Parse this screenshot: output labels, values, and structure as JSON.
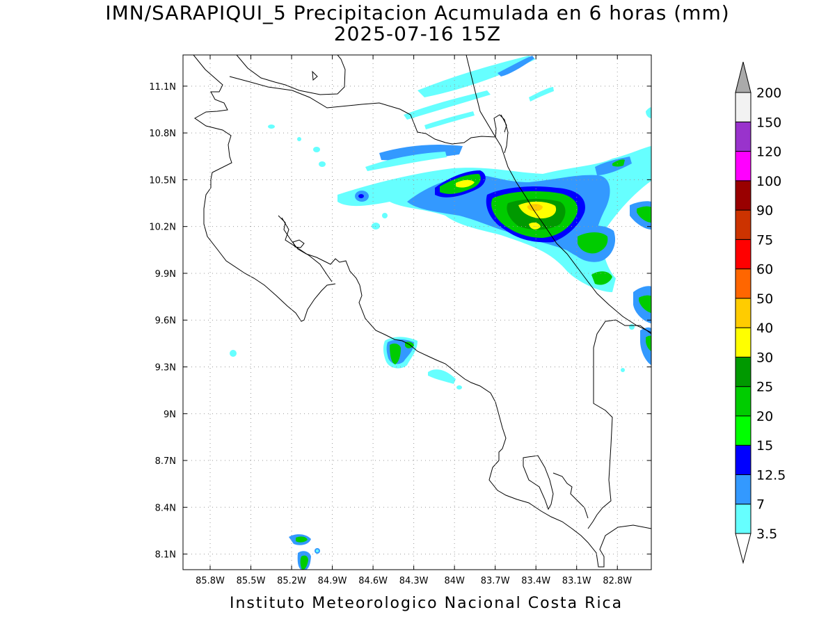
{
  "title": {
    "line1": "IMN/SARAPIQUI_5 Precipitacion Acumulada en 6 horas (mm)",
    "line2": "2025-07-16 15Z"
  },
  "footer": "Instituto Meteorologico Nacional Costa Rica",
  "map": {
    "lon_range": [
      -86.0,
      -82.55
    ],
    "lat_range": [
      8.0,
      11.3
    ],
    "x_ticks": [
      {
        "value": -85.8,
        "label": "85.8W"
      },
      {
        "value": -85.5,
        "label": "85.5W"
      },
      {
        "value": -85.2,
        "label": "85.2W"
      },
      {
        "value": -84.9,
        "label": "84.9W"
      },
      {
        "value": -84.6,
        "label": "84.6W"
      },
      {
        "value": -84.3,
        "label": "84.3W"
      },
      {
        "value": -84.0,
        "label": "84W"
      },
      {
        "value": -83.7,
        "label": "83.7W"
      },
      {
        "value": -83.4,
        "label": "83.4W"
      },
      {
        "value": -83.1,
        "label": "83.1W"
      },
      {
        "value": -82.8,
        "label": "82.8W"
      }
    ],
    "y_ticks": [
      {
        "value": 8.1,
        "label": "8.1N"
      },
      {
        "value": 8.4,
        "label": "8.4N"
      },
      {
        "value": 8.7,
        "label": "8.7N"
      },
      {
        "value": 9.0,
        "label": "9N"
      },
      {
        "value": 9.3,
        "label": "9.3N"
      },
      {
        "value": 9.6,
        "label": "9.6N"
      },
      {
        "value": 9.9,
        "label": "9.9N"
      },
      {
        "value": 10.2,
        "label": "10.2N"
      },
      {
        "value": 10.5,
        "label": "10.5N"
      },
      {
        "value": 10.8,
        "label": "10.8N"
      },
      {
        "value": 11.1,
        "label": "11.1N"
      }
    ],
    "grid": "dotted"
  },
  "colorbar": {
    "levels": [
      {
        "label": "3.5",
        "color": "#66ffff"
      },
      {
        "label": "7",
        "color": "#3399ff"
      },
      {
        "label": "12.5",
        "color": "#0000ff"
      },
      {
        "label": "15",
        "color": "#00ff00"
      },
      {
        "label": "20",
        "color": "#00cc00"
      },
      {
        "label": "25",
        "color": "#009900"
      },
      {
        "label": "30",
        "color": "#ffff00"
      },
      {
        "label": "40",
        "color": "#ffcc00"
      },
      {
        "label": "50",
        "color": "#ff6600"
      },
      {
        "label": "60",
        "color": "#ff0000"
      },
      {
        "label": "75",
        "color": "#cc3300"
      },
      {
        "label": "90",
        "color": "#990000"
      },
      {
        "label": "100",
        "color": "#ff00ff"
      },
      {
        "label": "120",
        "color": "#9933cc"
      },
      {
        "label": "150",
        "color": "#f2f2f2"
      },
      {
        "label": "200",
        "color": "#aaaaaa"
      }
    ]
  }
}
